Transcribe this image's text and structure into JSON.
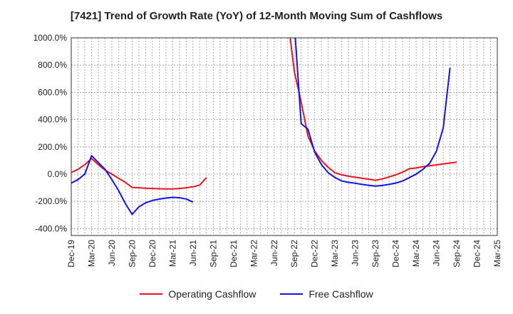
{
  "chart_data": {
    "type": "line",
    "title": "[7421]  Trend of Growth Rate (YoY) of 12-Month Moving Sum of Cashflows",
    "xlabel": "",
    "ylabel": "",
    "x_tick_labels": [
      "Dec-19",
      "Mar-20",
      "Jun-20",
      "Sep-20",
      "Dec-20",
      "Mar-21",
      "Jun-21",
      "Sep-21",
      "Dec-21",
      "Mar-22",
      "Jun-22",
      "Sep-22",
      "Dec-22",
      "Mar-23",
      "Jun-23",
      "Sep-23",
      "Dec-24",
      "Mar-24",
      "Jun-24",
      "Sep-24",
      "Dec-24",
      "Mar-25"
    ],
    "y_tick_labels": [
      "1000.0%",
      "800.0%",
      "600.0%",
      "400.0%",
      "200.0%",
      "0.0%",
      "-200.0%",
      "-400.0%"
    ],
    "ylim": [
      -450,
      1000
    ],
    "ylim_units": "%",
    "grid": true,
    "legend_position": "bottom",
    "series": [
      {
        "name": "Operating Cashflow",
        "color": "#e8141e",
        "points": [
          [
            "2019-12",
            12
          ],
          [
            "2020-01",
            35
          ],
          [
            "2020-02",
            70
          ],
          [
            "2020-03",
            115
          ],
          [
            "2020-04",
            70
          ],
          [
            "2020-05",
            30
          ],
          [
            "2020-06",
            0
          ],
          [
            "2020-07",
            -30
          ],
          [
            "2020-08",
            -60
          ],
          [
            "2020-09",
            -97
          ],
          [
            "2020-10",
            -100
          ],
          [
            "2020-11",
            -103
          ],
          [
            "2020-12",
            -105
          ],
          [
            "2021-01",
            -107
          ],
          [
            "2021-02",
            -108
          ],
          [
            "2021-03",
            -108
          ],
          [
            "2021-04",
            -105
          ],
          [
            "2021-05",
            -100
          ],
          [
            "2021-06",
            -93
          ],
          [
            "2021-07",
            -80
          ],
          [
            "2021-08",
            -25
          ],
          [
            "2022-08",
            1150
          ],
          [
            "2022-09",
            750
          ],
          [
            "2022-10",
            530
          ],
          [
            "2022-11",
            280
          ],
          [
            "2022-12",
            170
          ],
          [
            "2023-01",
            100
          ],
          [
            "2023-02",
            50
          ],
          [
            "2023-03",
            10
          ],
          [
            "2023-04",
            -5
          ],
          [
            "2023-05",
            -15
          ],
          [
            "2023-06",
            -23
          ],
          [
            "2023-07",
            -30
          ],
          [
            "2023-08",
            -37
          ],
          [
            "2023-09",
            -45
          ],
          [
            "2023-10",
            -35
          ],
          [
            "2023-11",
            -20
          ],
          [
            "2023-12",
            -5
          ],
          [
            "2024-01",
            15
          ],
          [
            "2024-02",
            40
          ],
          [
            "2024-03",
            45
          ],
          [
            "2024-04",
            55
          ],
          [
            "2024-05",
            62
          ],
          [
            "2024-06",
            68
          ],
          [
            "2024-07",
            75
          ],
          [
            "2024-08",
            82
          ],
          [
            "2024-09",
            88
          ]
        ]
      },
      {
        "name": "Free Cashflow",
        "color": "#1414e6",
        "points": [
          [
            "2019-12",
            -65
          ],
          [
            "2020-01",
            -40
          ],
          [
            "2020-02",
            0
          ],
          [
            "2020-03",
            135
          ],
          [
            "2020-04",
            85
          ],
          [
            "2020-05",
            35
          ],
          [
            "2020-06",
            -40
          ],
          [
            "2020-07",
            -120
          ],
          [
            "2020-08",
            -215
          ],
          [
            "2020-09",
            -295
          ],
          [
            "2020-10",
            -240
          ],
          [
            "2020-11",
            -210
          ],
          [
            "2020-12",
            -193
          ],
          [
            "2021-01",
            -183
          ],
          [
            "2021-02",
            -175
          ],
          [
            "2021-03",
            -170
          ],
          [
            "2021-04",
            -173
          ],
          [
            "2021-05",
            -182
          ],
          [
            "2021-06",
            -205
          ],
          [
            "2022-09",
            1100
          ],
          [
            "2022-10",
            370
          ],
          [
            "2022-11",
            330
          ],
          [
            "2022-12",
            160
          ],
          [
            "2023-01",
            70
          ],
          [
            "2023-02",
            10
          ],
          [
            "2023-03",
            -25
          ],
          [
            "2023-04",
            -50
          ],
          [
            "2023-05",
            -60
          ],
          [
            "2023-06",
            -67
          ],
          [
            "2023-07",
            -75
          ],
          [
            "2023-08",
            -82
          ],
          [
            "2023-09",
            -88
          ],
          [
            "2023-10",
            -83
          ],
          [
            "2023-11",
            -75
          ],
          [
            "2023-12",
            -65
          ],
          [
            "2024-01",
            -50
          ],
          [
            "2024-02",
            -25
          ],
          [
            "2024-03",
            0
          ],
          [
            "2024-04",
            35
          ],
          [
            "2024-05",
            80
          ],
          [
            "2024-06",
            170
          ],
          [
            "2024-07",
            340
          ],
          [
            "2024-08",
            780
          ]
        ]
      }
    ]
  }
}
